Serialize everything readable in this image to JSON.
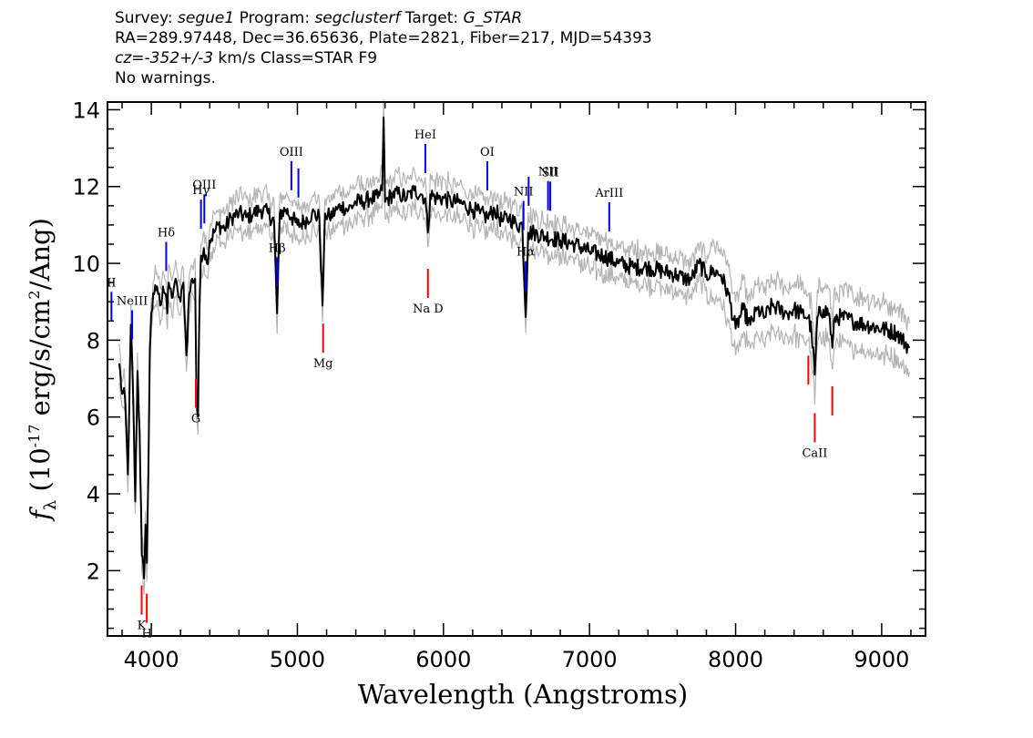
{
  "header": {
    "line1": [
      {
        "text": "Survey: ",
        "italic": false
      },
      {
        "text": "segue1",
        "italic": true
      },
      {
        "text": " Program: ",
        "italic": false
      },
      {
        "text": "segclusterf",
        "italic": true
      },
      {
        "text": " Target: ",
        "italic": false
      },
      {
        "text": "G_STAR",
        "italic": true
      }
    ],
    "line2": [
      {
        "text": "RA=289.97448, Dec=36.65636, Plate=2821, Fiber=217, MJD=54393",
        "italic": false
      }
    ],
    "line3": [
      {
        "text": "cz=-352+/-3",
        "italic": true
      },
      {
        "text": " km/s Class=STAR F9",
        "italic": false
      }
    ],
    "line4": [
      {
        "text": "No warnings.",
        "italic": false
      }
    ]
  },
  "chart_data": {
    "type": "line",
    "xlabel": "Wavelength (Angstroms)",
    "ylabel_parts": {
      "f": "f",
      "sub": "λ",
      "pre": " (10",
      "exp1": "-17",
      "mid": " erg/s/cm",
      "exp2": "2",
      "post": "/Ang)"
    },
    "xlim": [
      3700,
      9300
    ],
    "ylim": [
      0.3,
      14.2
    ],
    "xticks": [
      4000,
      5000,
      6000,
      7000,
      8000,
      9000
    ],
    "yticks": [
      2,
      4,
      6,
      8,
      10,
      12,
      14
    ],
    "x_minor_step": 200,
    "y_minor_step": 0.5,
    "colors": {
      "spectrum": "#000000",
      "error": "#b4b4b4",
      "emission": "#0000ff",
      "absorption": "#ff0000"
    },
    "spectrum": {
      "x": [
        3780,
        3800,
        3820,
        3840,
        3860,
        3875,
        3890,
        3905,
        3920,
        3935,
        3950,
        3960,
        3970,
        3980,
        3990,
        4000,
        4020,
        4040,
        4060,
        4080,
        4100,
        4110,
        4120,
        4140,
        4160,
        4180,
        4200,
        4220,
        4240,
        4260,
        4280,
        4300,
        4310,
        4320,
        4330,
        4340,
        4360,
        4380,
        4400,
        4430,
        4460,
        4500,
        4550,
        4600,
        4650,
        4700,
        4750,
        4800,
        4840,
        4861,
        4880,
        4920,
        4960,
        5000,
        5050,
        5100,
        5150,
        5172,
        5190,
        5220,
        5270,
        5300,
        5350,
        5400,
        5450,
        5500,
        5550,
        5580,
        5590,
        5600,
        5650,
        5700,
        5750,
        5800,
        5850,
        5875,
        5893,
        5910,
        5950,
        6000,
        6050,
        6100,
        6150,
        6200,
        6250,
        6300,
        6350,
        6400,
        6450,
        6500,
        6540,
        6563,
        6580,
        6620,
        6700,
        6800,
        6900,
        7000,
        7100,
        7200,
        7300,
        7400,
        7500,
        7600,
        7650,
        7700,
        7750,
        7800,
        7850,
        7900,
        7950,
        8000,
        8050,
        8100,
        8150,
        8200,
        8250,
        8300,
        8350,
        8400,
        8450,
        8498,
        8520,
        8542,
        8560,
        8600,
        8640,
        8662,
        8680,
        8720,
        8800,
        8900,
        9000,
        9100,
        9190
      ],
      "y": [
        7.4,
        6.6,
        6.5,
        4.5,
        8.4,
        6.6,
        3.8,
        7.2,
        5.6,
        2.4,
        1.8,
        3.2,
        2.2,
        4.6,
        7.8,
        8.7,
        9.2,
        9.4,
        8.9,
        9.4,
        9.2,
        8.7,
        9.5,
        9.1,
        9.5,
        9.3,
        9.0,
        9.5,
        7.6,
        9.2,
        9.6,
        9.6,
        6.4,
        6.0,
        8.9,
        10.2,
        10.4,
        10.0,
        10.6,
        10.8,
        11.0,
        10.9,
        11.2,
        11.3,
        11.2,
        11.3,
        11.4,
        11.3,
        11.1,
        8.7,
        11.3,
        11.4,
        11.2,
        11.0,
        11.1,
        11.3,
        11.2,
        8.9,
        11.3,
        11.2,
        11.4,
        11.5,
        11.4,
        11.6,
        11.6,
        11.7,
        11.7,
        11.9,
        13.8,
        11.6,
        11.8,
        11.8,
        11.7,
        11.9,
        11.8,
        11.7,
        10.8,
        11.8,
        11.7,
        11.7,
        11.6,
        11.6,
        11.5,
        11.4,
        11.3,
        11.2,
        11.4,
        11.1,
        11.2,
        11.0,
        11.0,
        8.6,
        10.8,
        10.8,
        10.7,
        10.6,
        10.5,
        10.3,
        10.2,
        10.0,
        9.9,
        9.9,
        9.8,
        9.7,
        9.6,
        9.6,
        10.0,
        9.7,
        9.8,
        9.7,
        9.2,
        8.3,
        8.8,
        8.4,
        8.8,
        8.6,
        8.9,
        8.8,
        8.7,
        8.8,
        8.7,
        8.6,
        8.2,
        7.1,
        8.6,
        8.8,
        8.7,
        7.8,
        8.6,
        8.6,
        8.5,
        8.4,
        8.3,
        8.2,
        7.8
      ]
    },
    "emission_lines": [
      {
        "label": "II",
        "x": 3727
      },
      {
        "label": "NeIII",
        "x": 3869
      },
      {
        "label": "Hδ",
        "x": 4102
      },
      {
        "label": "Hγ",
        "x": 4340
      },
      {
        "label": "OIII",
        "x": 4363
      },
      {
        "label": "Hβ",
        "x": 4861
      },
      {
        "label": "OIII",
        "x": 4959
      },
      {
        "label": "",
        "x": 5007
      },
      {
        "label": "HeI",
        "x": 5876
      },
      {
        "label": "OI",
        "x": 6300
      },
      {
        "label": "NII",
        "x": 6548
      },
      {
        "label": "Hα",
        "x": 6563
      },
      {
        "label": "",
        "x": 6583
      },
      {
        "label": "NII",
        "x": 6716
      },
      {
        "label": "SII",
        "x": 6731
      },
      {
        "label": "ArIII",
        "x": 7135
      }
    ],
    "absorption_lines": [
      {
        "label": "K",
        "x": 3934
      },
      {
        "label": "H",
        "x": 3969
      },
      {
        "label": "G",
        "x": 4305
      },
      {
        "label": "Mg",
        "x": 5176
      },
      {
        "label": "Na D",
        "x": 5894
      },
      {
        "label": "",
        "x": 8498
      },
      {
        "label": "CaII",
        "x": 8542
      },
      {
        "label": "",
        "x": 8662
      }
    ]
  }
}
